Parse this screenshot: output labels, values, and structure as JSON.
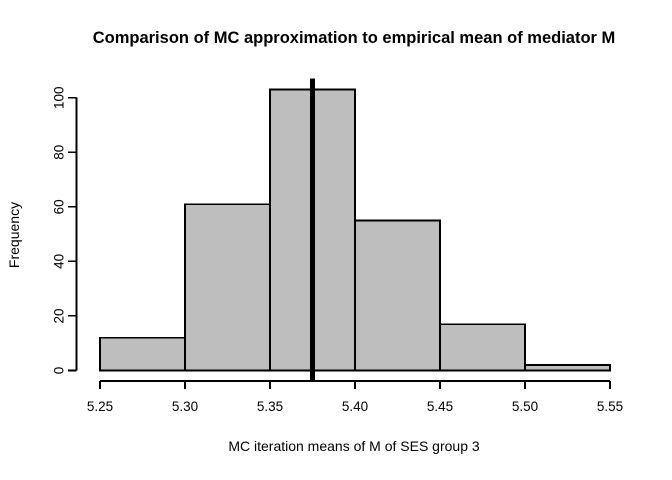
{
  "figure": {
    "background": "#FFFFFF",
    "text_color": "#000000"
  },
  "chart_data": {
    "type": "bar",
    "subtype": "histogram",
    "title": "Comparison of MC approximation to empirical mean of mediator M",
    "xlabel": "MC iteration means of M of SES group 3",
    "ylabel": "Frequency",
    "bin_breaks": [
      5.25,
      5.3,
      5.35,
      5.4,
      5.45,
      5.5,
      5.55
    ],
    "counts": [
      12,
      61,
      103,
      55,
      17,
      2
    ],
    "x_tick_values": [
      5.25,
      5.3,
      5.35,
      5.4,
      5.45,
      5.5,
      5.55
    ],
    "x_tick_labels": [
      "5.25",
      "5.30",
      "5.35",
      "5.40",
      "5.45",
      "5.50",
      "5.55"
    ],
    "y_tick_values": [
      0,
      20,
      40,
      60,
      80,
      100
    ],
    "y_tick_labels": [
      "0",
      "20",
      "40",
      "60",
      "80",
      "100"
    ],
    "xlim": [
      5.25,
      5.55
    ],
    "ylim": [
      0,
      103
    ],
    "grid": false,
    "legend": null,
    "vline": {
      "x": 5.375,
      "color": "#000000"
    },
    "bar_fill": "#BEBEBE",
    "bar_border": "#000000",
    "axis_color": "#000000"
  }
}
